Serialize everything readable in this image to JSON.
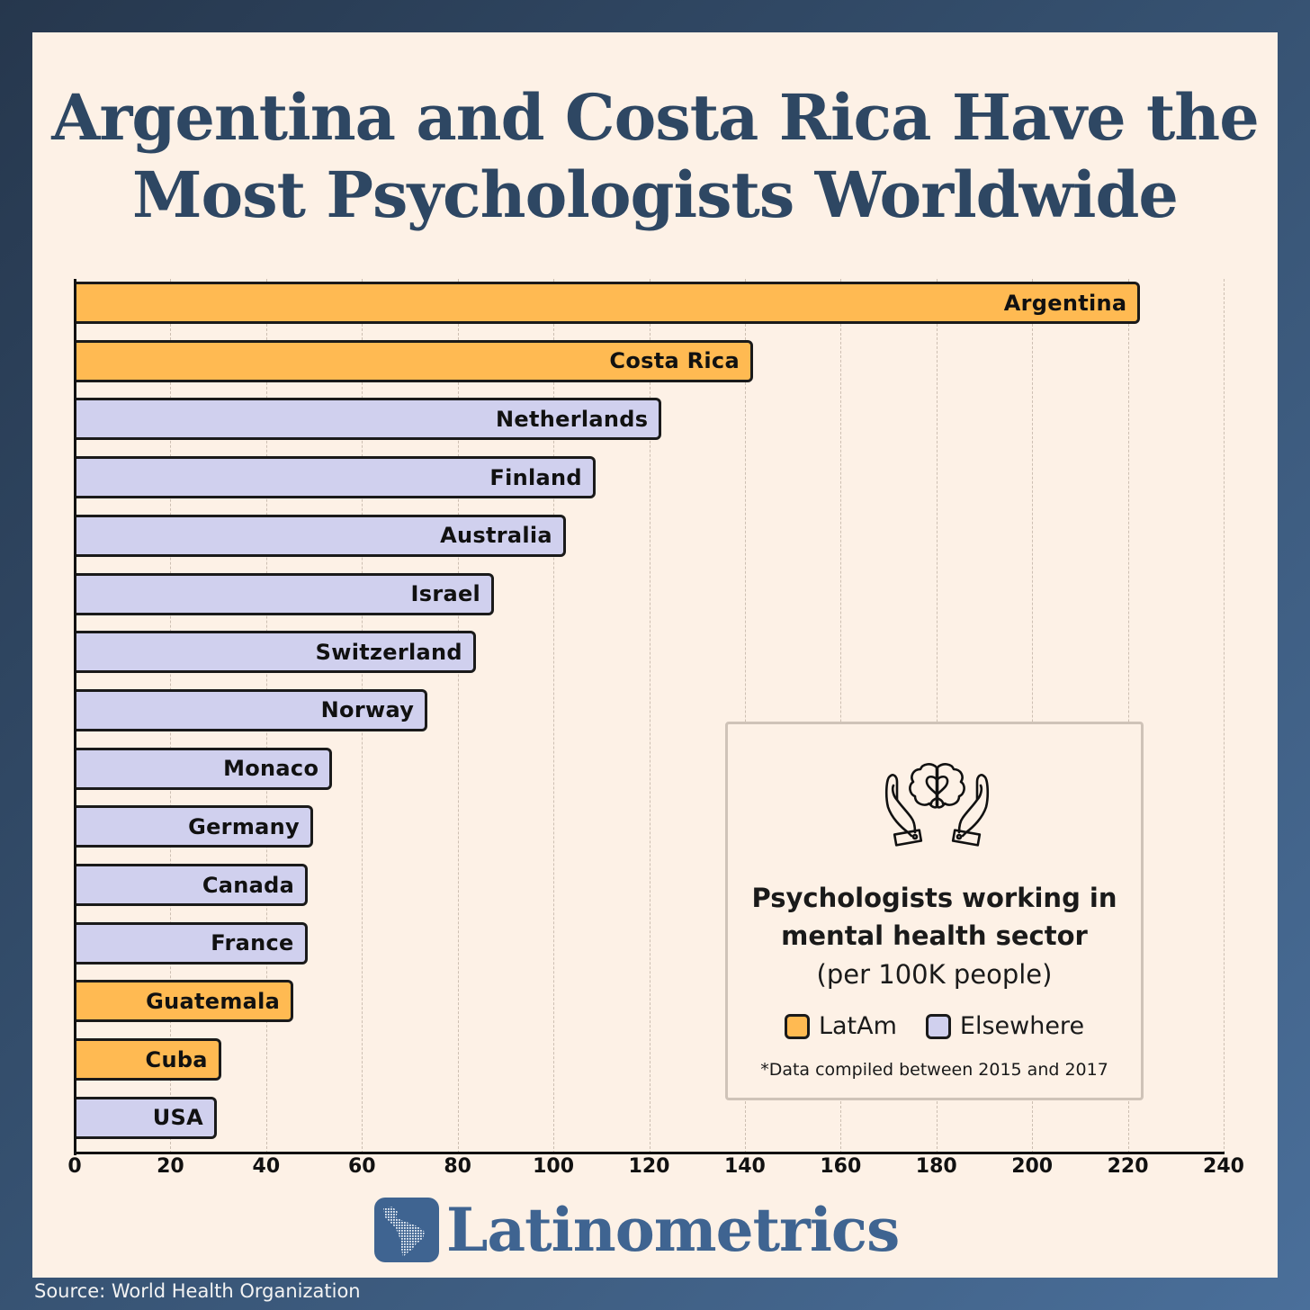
{
  "title_line1": "Argentina and Costa Rica Have the",
  "title_line2": "Most Psychologists Worldwide",
  "colors": {
    "latam": "#ffba52",
    "elsewhere": "#d0d0ee",
    "title": "#2e4763",
    "card_bg": "#fdf1e6",
    "brand": "#3f6491"
  },
  "legend": {
    "title_line1": "Psychologists working in",
    "title_line2": "mental health sector",
    "subtitle": "(per 100K people)",
    "items": [
      {
        "label": "LatAm",
        "color": "#ffba52"
      },
      {
        "label": "Elsewhere",
        "color": "#d0d0ee"
      }
    ],
    "note": "*Data compiled between 2015 and 2017",
    "icon": "hands-holding-brain-heart-icon"
  },
  "brand": {
    "name": "Latinometrics",
    "icon": "latin-america-map-icon"
  },
  "source": "Source: World Health Organization",
  "chart_data": {
    "type": "bar",
    "orientation": "horizontal",
    "title": "Argentina and Costa Rica Have the Most Psychologists Worldwide",
    "xlabel": "Psychologists working in mental health sector (per 100K people)",
    "ylabel": "",
    "xlim": [
      0,
      240
    ],
    "xticks": [
      0,
      20,
      40,
      60,
      80,
      100,
      120,
      140,
      160,
      180,
      200,
      220,
      240
    ],
    "grid": "vertical dashed",
    "legend_position": "lower right (inset box)",
    "categories": [
      "Argentina",
      "Costa Rica",
      "Netherlands",
      "Finland",
      "Australia",
      "Israel",
      "Switzerland",
      "Norway",
      "Monaco",
      "Germany",
      "Canada",
      "France",
      "Guatemala",
      "Cuba",
      "USA"
    ],
    "values": [
      222.6,
      141.7,
      122.6,
      108.8,
      102.6,
      87.6,
      83.8,
      73.7,
      53.8,
      49.8,
      48.7,
      48.6,
      45.7,
      30.6,
      29.7
    ],
    "groups": [
      "LatAm",
      "LatAm",
      "Elsewhere",
      "Elsewhere",
      "Elsewhere",
      "Elsewhere",
      "Elsewhere",
      "Elsewhere",
      "Elsewhere",
      "Elsewhere",
      "Elsewhere",
      "Elsewhere",
      "LatAm",
      "LatAm",
      "Elsewhere"
    ],
    "note": "*Data compiled between 2015 and 2017",
    "source": "World Health Organization"
  }
}
